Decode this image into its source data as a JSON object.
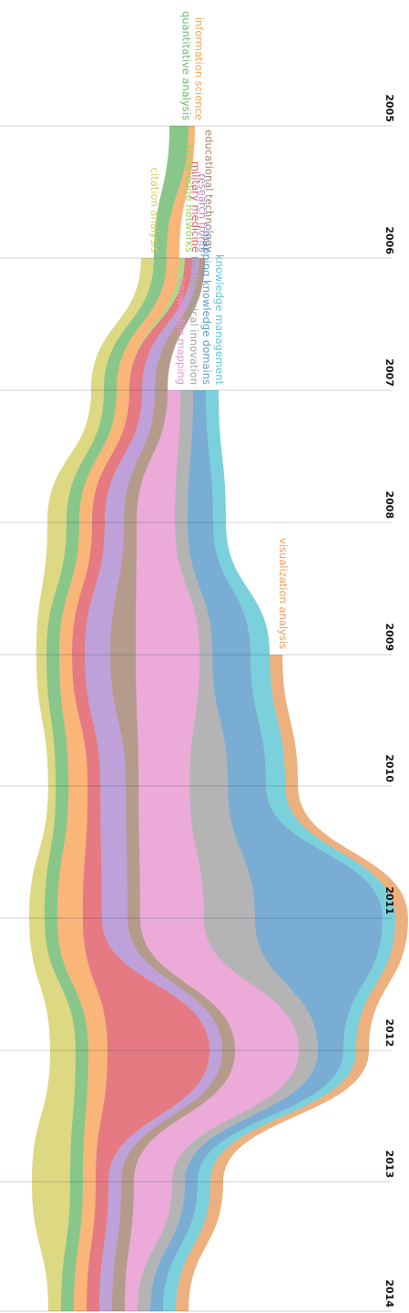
{
  "chart_data": {
    "type": "area",
    "orientation": "rotated-vertical-time",
    "x": [
      "2005",
      "2006",
      "2007",
      "2008",
      "2009",
      "2010",
      "2011",
      "2012",
      "2013",
      "2014"
    ],
    "grid": true,
    "legend": "inline labels at stream start",
    "series": [
      {
        "name": "citation analysis",
        "color": "#d6d066",
        "values": [
          0,
          1,
          1,
          1.5,
          0.8,
          0.6,
          1.2,
          2,
          3,
          1
        ]
      },
      {
        "name": "quantitative analysis",
        "color": "#6fba6f",
        "values": [
          1.5,
          1,
          1,
          1,
          1,
          1,
          1,
          1,
          1,
          1
        ]
      },
      {
        "name": "information science",
        "color": "#f8a65a",
        "values": [
          0.5,
          1,
          1,
          1,
          1,
          1.5,
          2,
          1.5,
          1,
          1
        ]
      },
      {
        "name": "knowledge networks",
        "color": "#9cd26a",
        "values": [
          0,
          0.3,
          0,
          0,
          0,
          0,
          0,
          0,
          0,
          0
        ]
      },
      {
        "name": "military medicine",
        "color": "#e05d68",
        "values": [
          0,
          0.6,
          1,
          1,
          1,
          1,
          1.5,
          8,
          1,
          1
        ]
      },
      {
        "name": "research fronts",
        "color": "#b08cd0",
        "values": [
          0,
          0.5,
          1,
          1.5,
          2,
          2,
          2,
          1,
          1,
          1
        ]
      },
      {
        "name": "educational technology",
        "color": "#a58573",
        "values": [
          0,
          0.5,
          1,
          1,
          2,
          1,
          1,
          1,
          1,
          1
        ]
      },
      {
        "name": "knowledge mapping",
        "color": "#e797cf",
        "values": [
          0,
          0,
          1,
          3,
          5,
          4,
          5,
          5,
          3,
          1
        ]
      },
      {
        "name": "technological innovation",
        "color": "#a3a3a3",
        "values": [
          0,
          0,
          1,
          1,
          1,
          3,
          4,
          1.5,
          1,
          1
        ]
      },
      {
        "name": "mapping knowledge domains",
        "color": "#5b9bc9",
        "values": [
          0,
          0,
          1,
          2,
          3,
          3,
          10,
          2,
          1,
          1
        ]
      },
      {
        "name": "knowledge management",
        "color": "#5ec7d3",
        "values": [
          0,
          0,
          1,
          1,
          1.5,
          1.5,
          1,
          1,
          1,
          1
        ]
      },
      {
        "name": "visualization analysis",
        "color": "#e8a062",
        "values": [
          0,
          0,
          0,
          0,
          1,
          1,
          1,
          1,
          1,
          1
        ]
      }
    ]
  }
}
